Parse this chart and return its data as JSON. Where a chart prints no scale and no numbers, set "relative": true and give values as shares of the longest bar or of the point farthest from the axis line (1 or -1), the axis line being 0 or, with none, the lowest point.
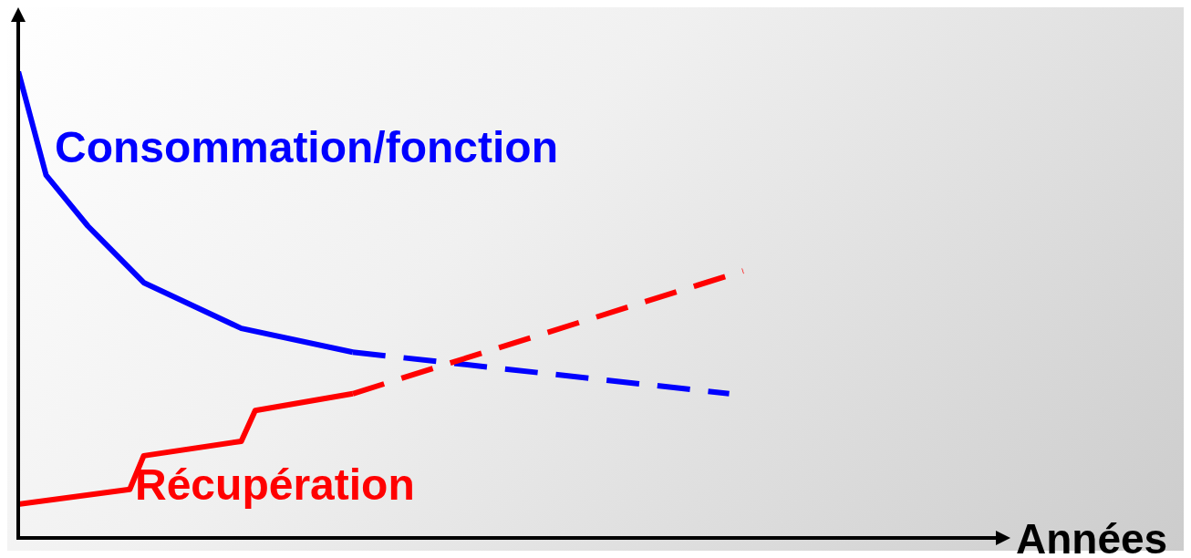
{
  "chart_data": {
    "type": "line",
    "relative": true,
    "xlabel": "Années",
    "grid": false,
    "legend": false,
    "marker": "none",
    "categories": [
      null,
      null,
      null,
      null,
      null,
      null,
      null,
      null,
      null,
      null,
      null,
      null,
      null,
      null,
      null,
      null,
      null,
      null,
      null,
      null,
      null,
      null,
      null,
      null,
      null,
      null,
      null,
      null,
      null,
      null,
      null,
      null,
      null,
      null,
      null,
      null,
      null,
      null,
      null,
      null,
      null,
      null,
      null,
      null,
      null,
      null,
      null,
      null,
      null,
      null,
      null,
      null,
      null,
      null,
      null,
      null,
      null,
      null,
      null,
      null,
      null,
      null,
      null,
      null,
      null,
      null,
      null,
      null,
      null,
      null,
      null
    ],
    "series": [
      {
        "name": "Consommation/fonction",
        "color": "#0000ff",
        "line_style": "solid",
        "values": [
          1.0,
          null,
          0.777,
          null,
          null,
          0.668,
          null,
          null,
          null,
          0.547,
          null,
          null,
          null,
          null,
          null,
          null,
          0.449,
          null,
          null,
          null,
          null,
          null,
          null,
          null,
          0.398,
          null,
          null,
          null,
          null,
          null,
          null,
          null,
          null,
          null,
          null,
          null,
          null,
          null,
          null,
          null,
          null,
          null,
          null,
          null,
          null,
          null,
          null,
          null,
          null,
          null,
          null,
          null,
          null,
          null,
          null,
          null,
          null,
          null,
          null,
          null,
          null,
          null,
          null,
          null,
          null,
          null,
          null,
          null,
          null,
          null,
          null
        ]
      },
      {
        "color": "#0000ff",
        "line_style": "dashed",
        "values": [
          null,
          null,
          null,
          null,
          null,
          null,
          null,
          null,
          null,
          null,
          null,
          null,
          null,
          null,
          null,
          null,
          null,
          null,
          null,
          null,
          null,
          null,
          null,
          null,
          0.398,
          null,
          null,
          null,
          null,
          null,
          null,
          null,
          null,
          null,
          null,
          null,
          null,
          null,
          null,
          null,
          null,
          null,
          null,
          null,
          null,
          null,
          null,
          null,
          null,
          null,
          null,
          0.309,
          null,
          null,
          null,
          null,
          null,
          null,
          null,
          null,
          null,
          null,
          null,
          null,
          null,
          null,
          null,
          null,
          null,
          null,
          null
        ]
      },
      {
        "name": "Récupération",
        "color": "#ff0000",
        "line_style": "solid",
        "values": [
          0.072,
          null,
          null,
          null,
          null,
          null,
          null,
          null,
          0.104,
          0.176,
          null,
          null,
          null,
          null,
          null,
          null,
          0.207,
          0.273,
          null,
          null,
          null,
          null,
          null,
          null,
          0.309,
          null,
          null,
          null,
          null,
          null,
          null,
          null,
          null,
          null,
          null,
          null,
          null,
          null,
          null,
          null,
          null,
          null,
          null,
          null,
          null,
          null,
          null,
          null,
          null,
          null,
          null,
          null,
          null,
          null,
          null,
          null,
          null,
          null,
          null,
          null,
          null,
          null,
          null,
          null,
          null,
          null,
          null,
          null,
          null,
          null,
          null
        ]
      },
      {
        "color": "#ff0000",
        "line_style": "dashed",
        "values": [
          null,
          null,
          null,
          null,
          null,
          null,
          null,
          null,
          null,
          null,
          null,
          null,
          null,
          null,
          null,
          null,
          null,
          null,
          null,
          null,
          null,
          null,
          null,
          null,
          0.309,
          null,
          null,
          null,
          null,
          null,
          null,
          null,
          null,
          null,
          null,
          null,
          null,
          null,
          null,
          null,
          null,
          null,
          null,
          null,
          null,
          null,
          null,
          null,
          null,
          null,
          null,
          null,
          0.572,
          null,
          null,
          null,
          null,
          null,
          null,
          null,
          null,
          null,
          null,
          null,
          null,
          null,
          null,
          null,
          null,
          null,
          null
        ]
      }
    ]
  }
}
